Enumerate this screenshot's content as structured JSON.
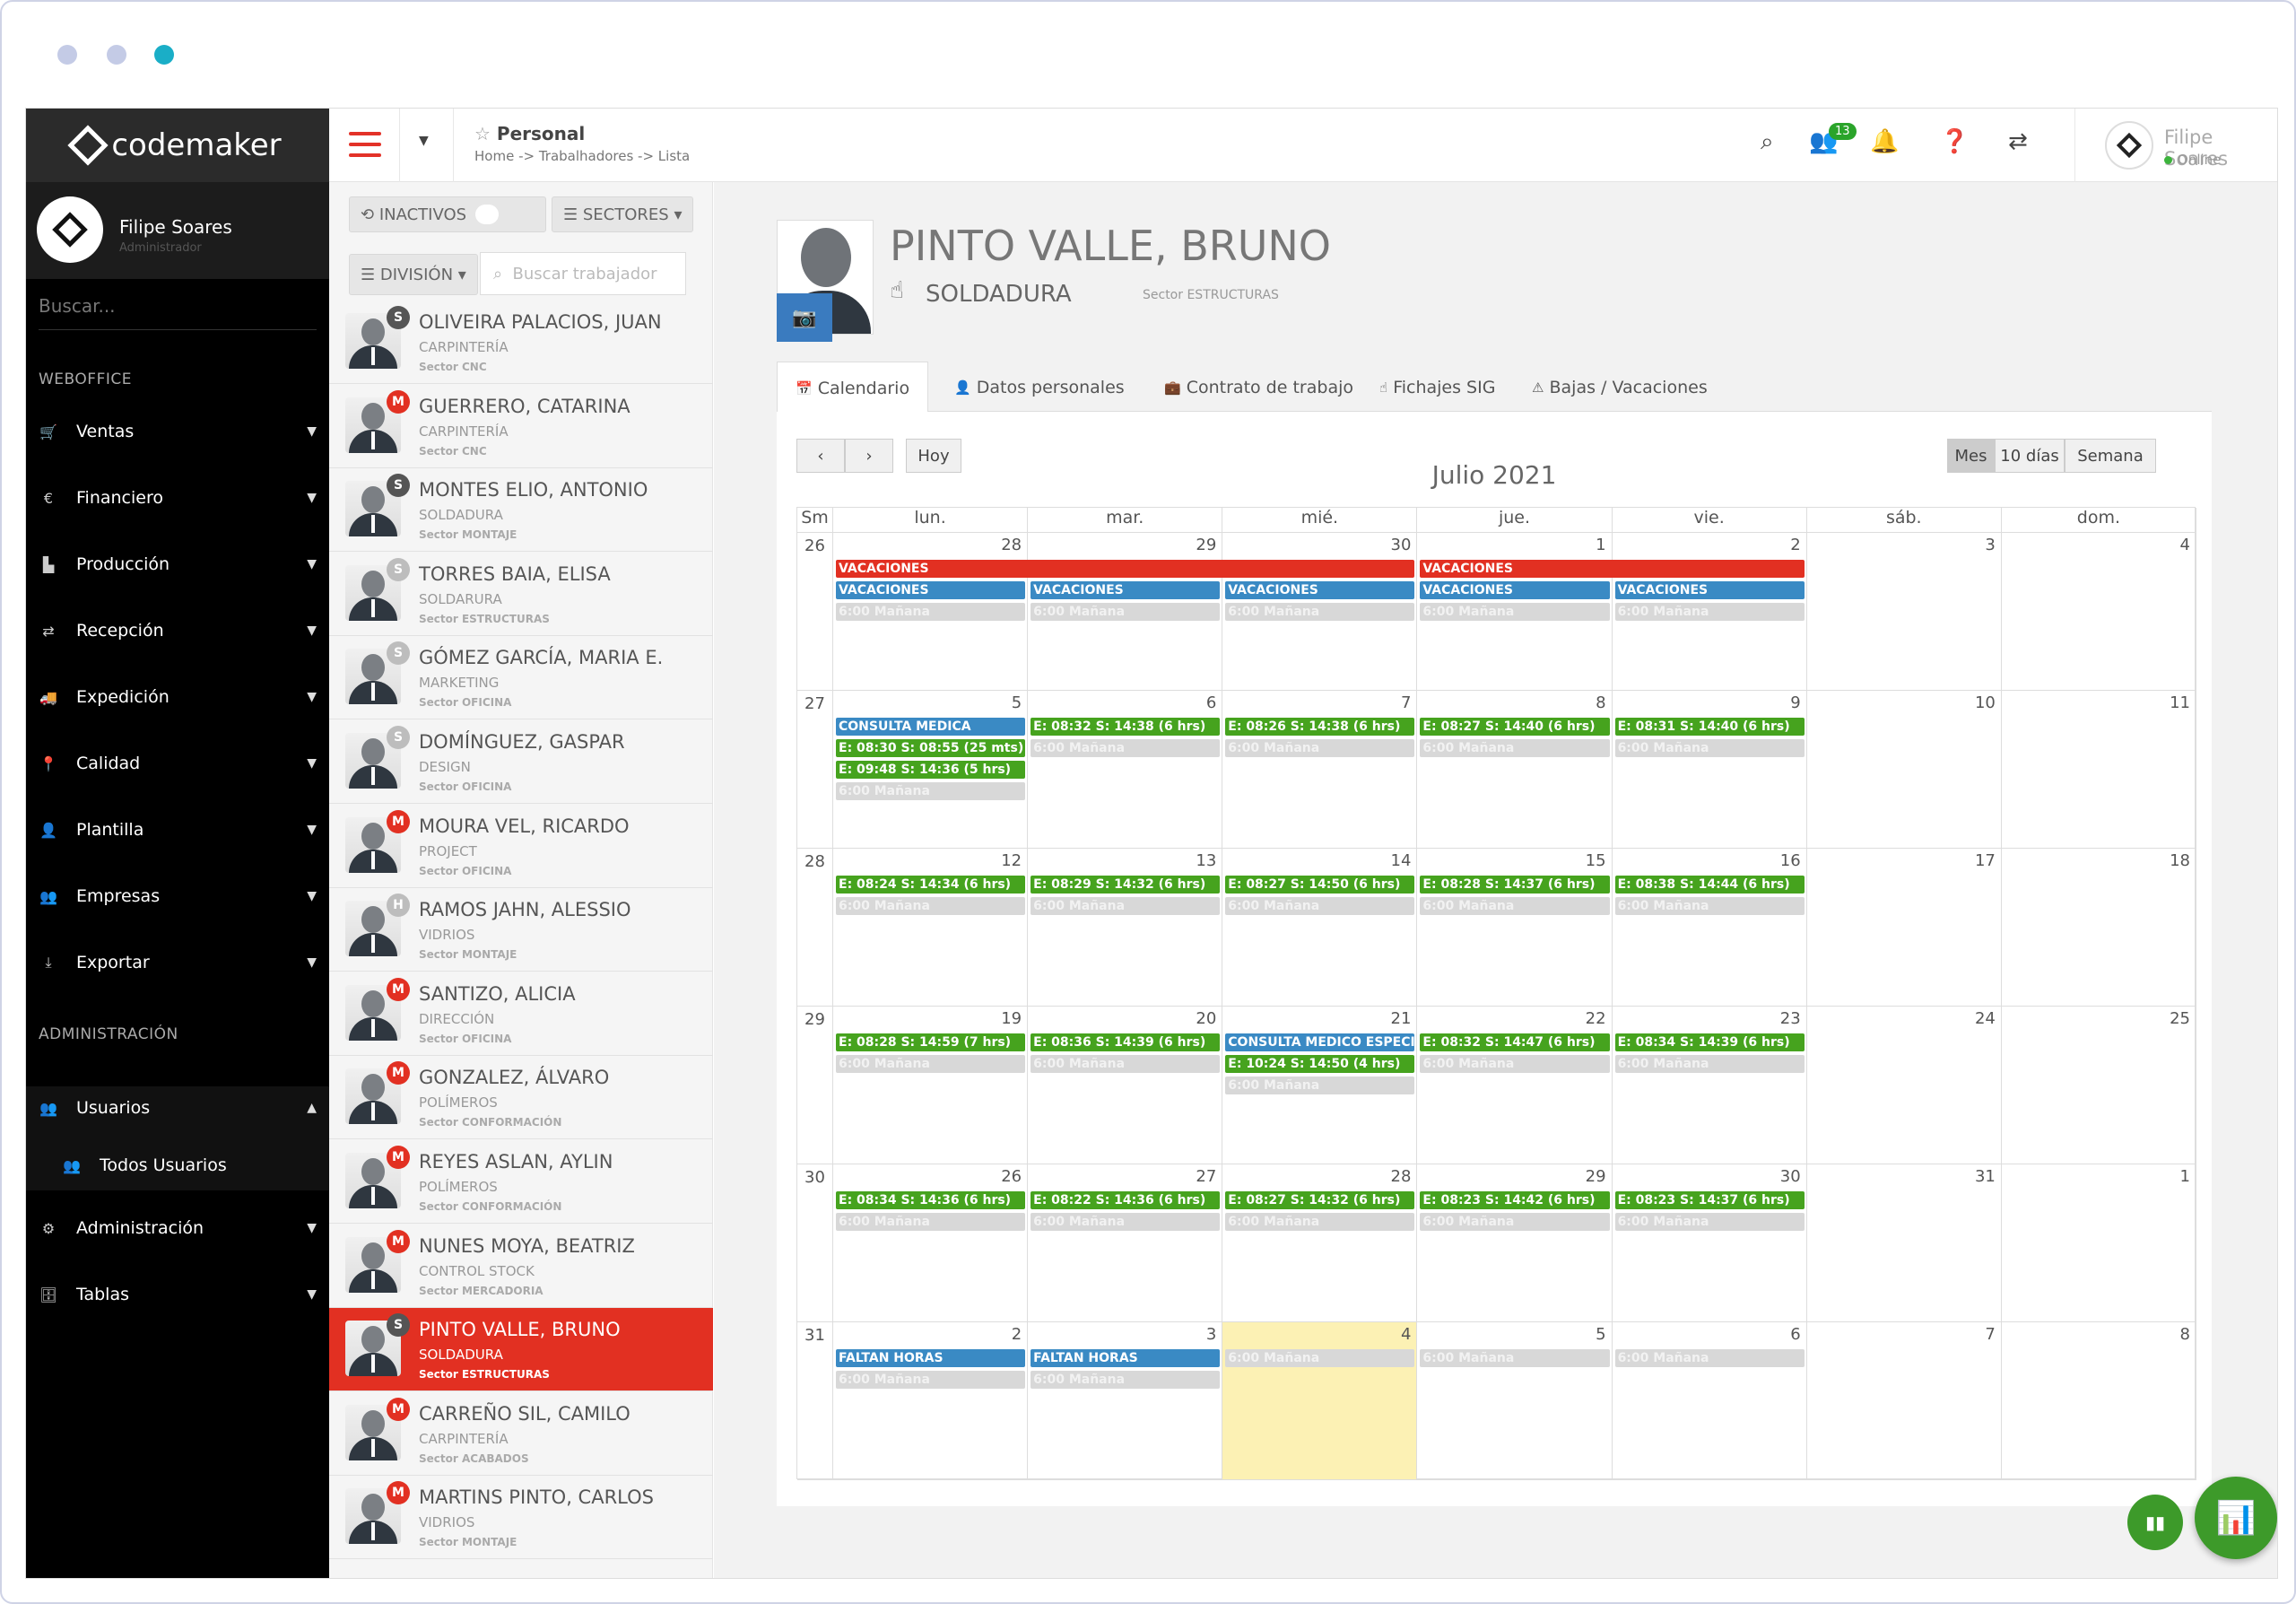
{
  "window": {
    "dot_colors": [
      "#c4cbe6",
      "#c4cbe6",
      "#1aaec7"
    ]
  },
  "sidebar": {
    "brand": "codemaker",
    "user_name": "Filipe Soares",
    "user_role": "Administrador",
    "search_placeholder": "Buscar...",
    "section_weboffice": "WEBOFFICE",
    "section_admin": "ADMINISTRACIÓN",
    "items": [
      {
        "label": "Ventas",
        "icon": "cart-icon"
      },
      {
        "label": "Financiero",
        "icon": "euro-icon"
      },
      {
        "label": "Producción",
        "icon": "chart-icon"
      },
      {
        "label": "Recepción",
        "icon": "exchange-icon"
      },
      {
        "label": "Expedición",
        "icon": "truck-icon"
      },
      {
        "label": "Calidad",
        "icon": "pin-icon"
      },
      {
        "label": "Plantilla",
        "icon": "user-plus-icon"
      },
      {
        "label": "Empresas",
        "icon": "users-icon"
      },
      {
        "label": "Exportar",
        "icon": "download-icon"
      }
    ],
    "admin_items": [
      {
        "label": "Usuarios",
        "icon": "users-icon"
      },
      {
        "label": "Todos Usuarios",
        "icon": "users-icon"
      },
      {
        "label": "Administración",
        "icon": "cogs-icon"
      },
      {
        "label": "Tablas",
        "icon": "database-icon"
      }
    ]
  },
  "header": {
    "page_title": "Personal",
    "breadcrumb": "Home -> Trabalhadores -> Lista",
    "notifications_count": "13",
    "user_name": "Filipe Soares",
    "user_status": "Online"
  },
  "list": {
    "inactive_label": "INACTIVOS",
    "sectors_label": "SECTORES",
    "division_label": "DIVISIÓN",
    "search_placeholder": "Buscar trabajador",
    "workers": [
      {
        "name": "OLIVEIRA PALACIOS, JUAN",
        "dept": "CARPINTERÍA",
        "sector": "Sector CNC",
        "badge": "S",
        "badge_color": "#555555"
      },
      {
        "name": "GUERRERO, CATARINA",
        "dept": "CARPINTERÍA",
        "sector": "Sector CNC",
        "badge": "M",
        "badge_color": "#e23022"
      },
      {
        "name": "MONTES ELIO, ANTONIO",
        "dept": "SOLDADURA",
        "sector": "Sector MONTAJE",
        "badge": "S",
        "badge_color": "#555555"
      },
      {
        "name": "TORRES BAIA, ELISA",
        "dept": "SOLDARURA",
        "sector": "Sector ESTRUCTURAS",
        "badge": "S",
        "badge_color": "#bdbdbd"
      },
      {
        "name": "GÓMEZ GARCÍA, MARIA E.",
        "dept": "MARKETING",
        "sector": "Sector OFICINA",
        "badge": "S",
        "badge_color": "#bdbdbd"
      },
      {
        "name": "DOMÍNGUEZ, GASPAR",
        "dept": "DESIGN",
        "sector": "Sector OFICINA",
        "badge": "S",
        "badge_color": "#bdbdbd"
      },
      {
        "name": "MOURA VEL, RICARDO",
        "dept": "PROJECT",
        "sector": "Sector OFICINA",
        "badge": "M",
        "badge_color": "#e23022"
      },
      {
        "name": "RAMOS JAHN, ALESSIO",
        "dept": "VIDRIOS",
        "sector": "Sector MONTAJE",
        "badge": "H",
        "badge_color": "#bdbdbd"
      },
      {
        "name": "SANTIZO, ALICIA",
        "dept": "DIRECCIÓN",
        "sector": "Sector OFICINA",
        "badge": "M",
        "badge_color": "#e23022"
      },
      {
        "name": "GONZALEZ, ÁLVARO",
        "dept": "POLÍMEROS",
        "sector": "Sector CONFORMACIÓN",
        "badge": "M",
        "badge_color": "#e23022"
      },
      {
        "name": "REYES ASLAN, AYLIN",
        "dept": "POLÍMEROS",
        "sector": "Sector CONFORMACIÓN",
        "badge": "M",
        "badge_color": "#e23022"
      },
      {
        "name": "NUNES MOYA, BEATRIZ",
        "dept": "CONTROL STOCK",
        "sector": "Sector MERCADORIA",
        "badge": "M",
        "badge_color": "#e23022"
      },
      {
        "name": "PINTO VALLE, BRUNO",
        "dept": "SOLDADURA",
        "sector": "Sector ESTRUCTURAS",
        "badge": "S",
        "badge_color": "#555555",
        "active": true
      },
      {
        "name": "CARREÑO SIL, CAMILO",
        "dept": "CARPINTERÍA",
        "sector": "Sector ACABADOS",
        "badge": "M",
        "badge_color": "#e23022"
      },
      {
        "name": "MARTINS PINTO, CARLOS",
        "dept": "VIDRIOS",
        "sector": "Sector MONTAJE",
        "badge": "M",
        "badge_color": "#e23022"
      }
    ]
  },
  "profile": {
    "name": "PINTO VALLE, BRUNO",
    "dept": "SOLDADURA",
    "sector": "Sector ESTRUCTURAS"
  },
  "tabs": [
    {
      "label": "Calendario",
      "icon": "calendar-icon",
      "active": true
    },
    {
      "label": "Datos personales",
      "icon": "user-icon"
    },
    {
      "label": "Contrato de trabajo",
      "icon": "briefcase-icon"
    },
    {
      "label": "Fichajes SIG",
      "icon": "hand-icon"
    },
    {
      "label": "Bajas / Vacaciones",
      "icon": "warning-icon"
    }
  ],
  "calendar": {
    "today_label": "Hoy",
    "month_title": "Julio 2021",
    "views": [
      "Mes",
      "10 días",
      "Semana"
    ],
    "active_view": "Mes",
    "week_header": "Sm",
    "days_of_week": [
      "lun.",
      "mar.",
      "mié.",
      "jue.",
      "vie.",
      "sáb.",
      "dom."
    ],
    "weeks": [
      {
        "num": "26",
        "days": [
          "28",
          "29",
          "30",
          "1",
          "2",
          "3",
          "4"
        ]
      },
      {
        "num": "27",
        "days": [
          "5",
          "6",
          "7",
          "8",
          "9",
          "10",
          "11"
        ]
      },
      {
        "num": "28",
        "days": [
          "12",
          "13",
          "14",
          "15",
          "16",
          "17",
          "18"
        ]
      },
      {
        "num": "29",
        "days": [
          "19",
          "20",
          "21",
          "22",
          "23",
          "24",
          "25"
        ]
      },
      {
        "num": "30",
        "days": [
          "26",
          "27",
          "28",
          "29",
          "30",
          "31",
          "1"
        ]
      },
      {
        "num": "31",
        "days": [
          "2",
          "3",
          "4",
          "5",
          "6",
          "7",
          "8"
        ]
      }
    ],
    "today_cell": {
      "week": 5,
      "day": 2
    },
    "events": [
      {
        "week": 0,
        "day": 0,
        "span": 3,
        "row": 0,
        "color": "red",
        "text": "VACACIONES"
      },
      {
        "week": 0,
        "day": 3,
        "span": 2,
        "row": 0,
        "color": "red",
        "text": "VACACIONES"
      },
      {
        "week": 0,
        "day": 0,
        "span": 1,
        "row": 1,
        "color": "blue",
        "text": "VACACIONES"
      },
      {
        "week": 0,
        "day": 1,
        "span": 1,
        "row": 1,
        "color": "blue",
        "text": "VACACIONES"
      },
      {
        "week": 0,
        "day": 2,
        "span": 1,
        "row": 1,
        "color": "blue",
        "text": "VACACIONES"
      },
      {
        "week": 0,
        "day": 3,
        "span": 1,
        "row": 1,
        "color": "blue",
        "text": "VACACIONES"
      },
      {
        "week": 0,
        "day": 4,
        "span": 1,
        "row": 1,
        "color": "blue",
        "text": "VACACIONES"
      },
      {
        "week": 0,
        "day": 0,
        "span": 1,
        "row": 2,
        "color": "grey",
        "text": "6:00 Mañana"
      },
      {
        "week": 0,
        "day": 1,
        "span": 1,
        "row": 2,
        "color": "grey",
        "text": "6:00 Mañana"
      },
      {
        "week": 0,
        "day": 2,
        "span": 1,
        "row": 2,
        "color": "grey",
        "text": "6:00 Mañana"
      },
      {
        "week": 0,
        "day": 3,
        "span": 1,
        "row": 2,
        "color": "grey",
        "text": "6:00 Mañana"
      },
      {
        "week": 0,
        "day": 4,
        "span": 1,
        "row": 2,
        "color": "grey",
        "text": "6:00 Mañana"
      },
      {
        "week": 1,
        "day": 0,
        "span": 1,
        "row": 0,
        "color": "blue",
        "text": "CONSULTA MEDICA"
      },
      {
        "week": 1,
        "day": 0,
        "span": 1,
        "row": 1,
        "color": "green",
        "text": "E: 08:30 S: 08:55 (25 mts)"
      },
      {
        "week": 1,
        "day": 0,
        "span": 1,
        "row": 2,
        "color": "green",
        "text": "E: 09:48 S: 14:36 (5 hrs)"
      },
      {
        "week": 1,
        "day": 0,
        "span": 1,
        "row": 3,
        "color": "grey",
        "text": "6:00 Mañana"
      },
      {
        "week": 1,
        "day": 1,
        "span": 1,
        "row": 0,
        "color": "green",
        "text": "E: 08:32 S: 14:38 (6 hrs)"
      },
      {
        "week": 1,
        "day": 1,
        "span": 1,
        "row": 1,
        "color": "grey",
        "text": "6:00 Mañana"
      },
      {
        "week": 1,
        "day": 2,
        "span": 1,
        "row": 0,
        "color": "green",
        "text": "E: 08:26 S: 14:38 (6 hrs)"
      },
      {
        "week": 1,
        "day": 2,
        "span": 1,
        "row": 1,
        "color": "grey",
        "text": "6:00 Mañana"
      },
      {
        "week": 1,
        "day": 3,
        "span": 1,
        "row": 0,
        "color": "green",
        "text": "E: 08:27 S: 14:40 (6 hrs)"
      },
      {
        "week": 1,
        "day": 3,
        "span": 1,
        "row": 1,
        "color": "grey",
        "text": "6:00 Mañana"
      },
      {
        "week": 1,
        "day": 4,
        "span": 1,
        "row": 0,
        "color": "green",
        "text": "E: 08:31 S: 14:40 (6 hrs)"
      },
      {
        "week": 1,
        "day": 4,
        "span": 1,
        "row": 1,
        "color": "grey",
        "text": "6:00 Mañana"
      },
      {
        "week": 2,
        "day": 0,
        "span": 1,
        "row": 0,
        "color": "green",
        "text": "E: 08:24 S: 14:34 (6 hrs)"
      },
      {
        "week": 2,
        "day": 0,
        "span": 1,
        "row": 1,
        "color": "grey",
        "text": "6:00 Mañana"
      },
      {
        "week": 2,
        "day": 1,
        "span": 1,
        "row": 0,
        "color": "green",
        "text": "E: 08:29 S: 14:32 (6 hrs)"
      },
      {
        "week": 2,
        "day": 1,
        "span": 1,
        "row": 1,
        "color": "grey",
        "text": "6:00 Mañana"
      },
      {
        "week": 2,
        "day": 2,
        "span": 1,
        "row": 0,
        "color": "green",
        "text": "E: 08:27 S: 14:50 (6 hrs)"
      },
      {
        "week": 2,
        "day": 2,
        "span": 1,
        "row": 1,
        "color": "grey",
        "text": "6:00 Mañana"
      },
      {
        "week": 2,
        "day": 3,
        "span": 1,
        "row": 0,
        "color": "green",
        "text": "E: 08:28 S: 14:37 (6 hrs)"
      },
      {
        "week": 2,
        "day": 3,
        "span": 1,
        "row": 1,
        "color": "grey",
        "text": "6:00 Mañana"
      },
      {
        "week": 2,
        "day": 4,
        "span": 1,
        "row": 0,
        "color": "green",
        "text": "E: 08:38 S: 14:44 (6 hrs)"
      },
      {
        "week": 2,
        "day": 4,
        "span": 1,
        "row": 1,
        "color": "grey",
        "text": "6:00 Mañana"
      },
      {
        "week": 3,
        "day": 0,
        "span": 1,
        "row": 0,
        "color": "green",
        "text": "E: 08:28 S: 14:59 (7 hrs)"
      },
      {
        "week": 3,
        "day": 0,
        "span": 1,
        "row": 1,
        "color": "grey",
        "text": "6:00 Mañana"
      },
      {
        "week": 3,
        "day": 1,
        "span": 1,
        "row": 0,
        "color": "green",
        "text": "E: 08:36 S: 14:39 (6 hrs)"
      },
      {
        "week": 3,
        "day": 1,
        "span": 1,
        "row": 1,
        "color": "grey",
        "text": "6:00 Mañana"
      },
      {
        "week": 3,
        "day": 2,
        "span": 1,
        "row": 0,
        "color": "blue",
        "text": "CONSULTA MEDICO ESPECIALISTA"
      },
      {
        "week": 3,
        "day": 2,
        "span": 1,
        "row": 1,
        "color": "green",
        "text": "E: 10:24 S: 14:50 (4 hrs)"
      },
      {
        "week": 3,
        "day": 2,
        "span": 1,
        "row": 2,
        "color": "grey",
        "text": "6:00 Mañana"
      },
      {
        "week": 3,
        "day": 3,
        "span": 1,
        "row": 0,
        "color": "green",
        "text": "E: 08:32 S: 14:47 (6 hrs)"
      },
      {
        "week": 3,
        "day": 3,
        "span": 1,
        "row": 1,
        "color": "grey",
        "text": "6:00 Mañana"
      },
      {
        "week": 3,
        "day": 4,
        "span": 1,
        "row": 0,
        "color": "green",
        "text": "E: 08:34 S: 14:39 (6 hrs)"
      },
      {
        "week": 3,
        "day": 4,
        "span": 1,
        "row": 1,
        "color": "grey",
        "text": "6:00 Mañana"
      },
      {
        "week": 4,
        "day": 0,
        "span": 1,
        "row": 0,
        "color": "green",
        "text": "E: 08:34 S: 14:36 (6 hrs)"
      },
      {
        "week": 4,
        "day": 0,
        "span": 1,
        "row": 1,
        "color": "grey",
        "text": "6:00 Mañana"
      },
      {
        "week": 4,
        "day": 1,
        "span": 1,
        "row": 0,
        "color": "green",
        "text": "E: 08:22 S: 14:36 (6 hrs)"
      },
      {
        "week": 4,
        "day": 1,
        "span": 1,
        "row": 1,
        "color": "grey",
        "text": "6:00 Mañana"
      },
      {
        "week": 4,
        "day": 2,
        "span": 1,
        "row": 0,
        "color": "green",
        "text": "E: 08:27 S: 14:32 (6 hrs)"
      },
      {
        "week": 4,
        "day": 2,
        "span": 1,
        "row": 1,
        "color": "grey",
        "text": "6:00 Mañana"
      },
      {
        "week": 4,
        "day": 3,
        "span": 1,
        "row": 0,
        "color": "green",
        "text": "E: 08:23 S: 14:42 (6 hrs)"
      },
      {
        "week": 4,
        "day": 3,
        "span": 1,
        "row": 1,
        "color": "grey",
        "text": "6:00 Mañana"
      },
      {
        "week": 4,
        "day": 4,
        "span": 1,
        "row": 0,
        "color": "green",
        "text": "E: 08:23 S: 14:37 (6 hrs)"
      },
      {
        "week": 4,
        "day": 4,
        "span": 1,
        "row": 1,
        "color": "grey",
        "text": "6:00 Mañana"
      },
      {
        "week": 5,
        "day": 0,
        "span": 1,
        "row": 0,
        "color": "blue",
        "text": "FALTAN HORAS"
      },
      {
        "week": 5,
        "day": 0,
        "span": 1,
        "row": 1,
        "color": "grey",
        "text": "6:00 Mañana"
      },
      {
        "week": 5,
        "day": 1,
        "span": 1,
        "row": 0,
        "color": "blue",
        "text": "FALTAN HORAS"
      },
      {
        "week": 5,
        "day": 1,
        "span": 1,
        "row": 1,
        "color": "grey",
        "text": "6:00 Mañana"
      },
      {
        "week": 5,
        "day": 2,
        "span": 1,
        "row": 0,
        "color": "grey",
        "text": "6:00 Mañana"
      },
      {
        "week": 5,
        "day": 3,
        "span": 1,
        "row": 0,
        "color": "grey",
        "text": "6:00 Mañana"
      },
      {
        "week": 5,
        "day": 4,
        "span": 1,
        "row": 0,
        "color": "grey",
        "text": "6:00 Mañana"
      }
    ]
  }
}
